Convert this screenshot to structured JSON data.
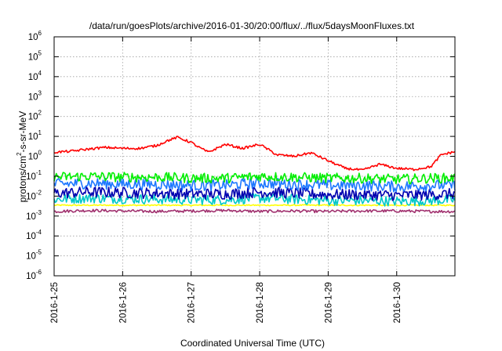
{
  "chart_data": {
    "type": "line",
    "title": "/data/run/goesPlots/archive/2016-01-30/20:00/flux/../flux/5daysMoonFluxes.txt",
    "xlabel": "Coordinated Universal Time (UTC)",
    "ylabel_parts": [
      "protons/cm",
      "2",
      "-s-sr-MeV"
    ],
    "y_scale": "log",
    "ylim": [
      1e-06,
      1000000.0
    ],
    "xlim": [
      0,
      5.85
    ],
    "x_start_date": "2016-01-25",
    "x_ticks": [
      {
        "value": 0,
        "label": "2016-1-25"
      },
      {
        "value": 1,
        "label": "2016-1-26"
      },
      {
        "value": 2,
        "label": "2016-1-27"
      },
      {
        "value": 3,
        "label": "2016-1-28"
      },
      {
        "value": 4,
        "label": "2016-1-29"
      },
      {
        "value": 5,
        "label": "2016-1-30"
      }
    ],
    "y_ticks": [
      {
        "exp": -6,
        "label": "10",
        "sup": "-6"
      },
      {
        "exp": -5,
        "label": "10",
        "sup": "-5"
      },
      {
        "exp": -4,
        "label": "10",
        "sup": "-4"
      },
      {
        "exp": -3,
        "label": "10",
        "sup": "-3"
      },
      {
        "exp": -2,
        "label": "10",
        "sup": "-2"
      },
      {
        "exp": -1,
        "label": "10",
        "sup": "-1"
      },
      {
        "exp": 0,
        "label": "10",
        "sup": "0"
      },
      {
        "exp": 1,
        "label": "10",
        "sup": "1"
      },
      {
        "exp": 2,
        "label": "10",
        "sup": "2"
      },
      {
        "exp": 3,
        "label": "10",
        "sup": "3"
      },
      {
        "exp": 4,
        "label": "10",
        "sup": "4"
      },
      {
        "exp": 5,
        "label": "10",
        "sup": "5"
      },
      {
        "exp": 6,
        "label": "10",
        "sup": "6"
      }
    ],
    "grid": true,
    "legend": "none",
    "series": [
      {
        "color": "#ff0000",
        "x": [
          0,
          0.25,
          0.5,
          0.75,
          1,
          1.25,
          1.5,
          1.65,
          1.8,
          2,
          2.1,
          2.25,
          2.5,
          2.75,
          3,
          3.25,
          3.5,
          3.75,
          4,
          4.25,
          4.5,
          4.75,
          5,
          5.25,
          5.5,
          5.65,
          5.85
        ],
        "y": [
          1.6,
          1.8,
          2.3,
          2.8,
          2.5,
          2.5,
          3.5,
          6,
          9,
          5,
          3,
          1.6,
          4,
          2.5,
          4,
          1.2,
          1,
          1.5,
          0.6,
          0.25,
          0.2,
          0.4,
          0.25,
          0.22,
          0.3,
          1.2,
          1.7
        ]
      },
      {
        "color": "#00ee00",
        "x": [
          0,
          0.5,
          1,
          1.5,
          2,
          2.5,
          3,
          3.5,
          4,
          4.5,
          5,
          5.5,
          5.85
        ],
        "y": [
          0.09,
          0.1,
          0.09,
          0.09,
          0.08,
          0.08,
          0.1,
          0.09,
          0.08,
          0.08,
          0.07,
          0.08,
          0.08
        ]
      },
      {
        "color": "#1e78ff",
        "x": [
          0,
          0.5,
          1,
          1.5,
          2,
          2.5,
          3,
          3.5,
          4,
          4.5,
          5,
          5.5,
          5.85
        ],
        "y": [
          0.04,
          0.045,
          0.04,
          0.04,
          0.035,
          0.035,
          0.045,
          0.04,
          0.035,
          0.035,
          0.03,
          0.035,
          0.035
        ]
      },
      {
        "color": "#0000b0",
        "x": [
          0,
          0.5,
          1,
          1.5,
          2,
          2.5,
          3,
          3.5,
          4,
          4.5,
          5,
          5.5,
          5.85
        ],
        "y": [
          0.014,
          0.016,
          0.015,
          0.014,
          0.013,
          0.013,
          0.016,
          0.014,
          0.012,
          0.012,
          0.011,
          0.012,
          0.013
        ]
      },
      {
        "color": "#00c8c8",
        "x": [
          0,
          0.5,
          1,
          1.5,
          2,
          2.5,
          3,
          3.5,
          4,
          4.5,
          5,
          5.5,
          5.85
        ],
        "y": [
          0.007,
          0.008,
          0.0075,
          0.007,
          0.0065,
          0.0065,
          0.008,
          0.007,
          0.006,
          0.006,
          0.0055,
          0.006,
          0.0065
        ]
      },
      {
        "color": "#ffff00",
        "x": [
          0,
          0.5,
          1,
          1.5,
          2,
          2.5,
          3,
          3.5,
          4,
          4.5,
          5,
          5.5,
          5.85
        ],
        "y": [
          0.0035,
          0.0035,
          0.0035,
          0.0035,
          0.0035,
          0.0035,
          0.0035,
          0.0035,
          0.0035,
          0.0035,
          0.0035,
          0.0035,
          0.0035
        ]
      },
      {
        "color": "#a0306e",
        "x": [
          0,
          0.5,
          1,
          1.5,
          2,
          2.5,
          3,
          3.5,
          4,
          4.5,
          5,
          5.5,
          5.85
        ],
        "y": [
          0.0017,
          0.0019,
          0.0018,
          0.0017,
          0.0018,
          0.0019,
          0.0017,
          0.0018,
          0.0017,
          0.0018,
          0.0018,
          0.0017,
          0.0017
        ]
      }
    ]
  }
}
